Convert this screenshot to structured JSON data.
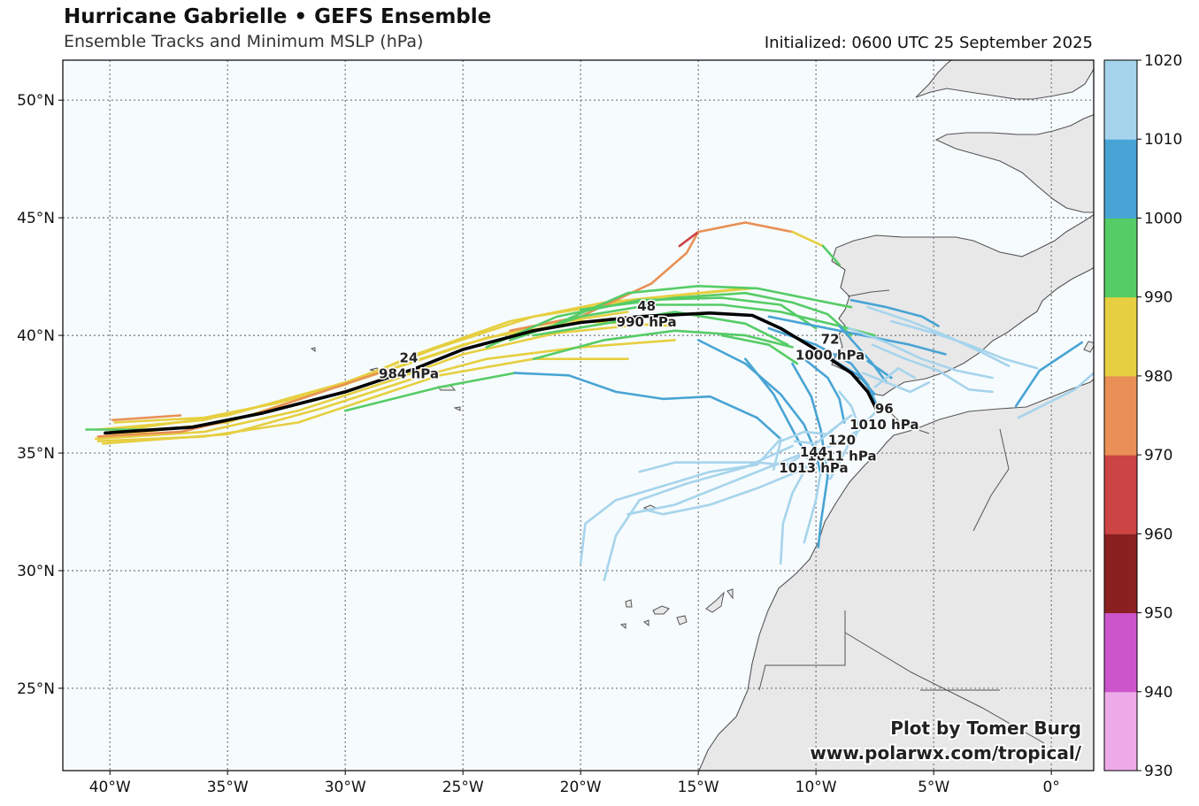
{
  "header": {
    "title": "Hurricane Gabrielle • GEFS Ensemble",
    "subtitle": "Ensemble Tracks and Minimum MSLP (hPa)",
    "initialized": "Initialized: 0600 UTC 25 September 2025"
  },
  "map": {
    "lon_range": [
      -42,
      1.8
    ],
    "lat_range": [
      21.5,
      51.7
    ],
    "lon_ticks": [
      -40,
      -35,
      -30,
      -25,
      -20,
      -15,
      -10,
      -5,
      0
    ],
    "lon_tick_labels": [
      "40°W",
      "35°W",
      "30°W",
      "25°W",
      "20°W",
      "15°W",
      "10°W",
      "5°W",
      "0°"
    ],
    "lat_ticks": [
      25,
      30,
      35,
      40,
      45,
      50
    ],
    "lat_tick_labels": [
      "25°N",
      "30°N",
      "35°N",
      "40°N",
      "45°N",
      "50°N"
    ],
    "grid": true,
    "ocean_color": "#f6fbfd",
    "land_color": "#e8e8e8"
  },
  "colorbar": {
    "levels": [
      930,
      940,
      950,
      960,
      970,
      980,
      990,
      1000,
      1010,
      1020
    ],
    "level_labels": [
      "930",
      "940",
      "950",
      "960",
      "970",
      "980",
      "990",
      "1000",
      "1010",
      "1020"
    ],
    "colors": [
      "#eeaae8",
      "#cc55cc",
      "#8b2020",
      "#cc4444",
      "#e89055",
      "#e6cf40",
      "#55cc66",
      "#48a4d4",
      "#a6d4ec"
    ]
  },
  "mean_track": {
    "color": "#000000",
    "points": [
      [
        -40.2,
        35.85
      ],
      [
        -36.5,
        36.1
      ],
      [
        -33.5,
        36.7
      ],
      [
        -30,
        37.6
      ],
      [
        -27,
        38.6
      ],
      [
        -25,
        39.4
      ],
      [
        -22,
        40.2
      ],
      [
        -20,
        40.55
      ],
      [
        -17.5,
        40.8
      ],
      [
        -14.5,
        40.95
      ],
      [
        -12.7,
        40.85
      ],
      [
        -11.5,
        40.3
      ],
      [
        -10,
        39.4
      ],
      [
        -8.5,
        38.4
      ],
      [
        -7.8,
        37.6
      ],
      [
        -7.4,
        36.8
      ]
    ],
    "labels": [
      {
        "hour": "24",
        "pressure": "984 hPa",
        "lon": -27.3,
        "lat": 38.7
      },
      {
        "hour": "48",
        "pressure": "990 hPa",
        "lon": -17.2,
        "lat": 40.9
      },
      {
        "hour": "72",
        "pressure": "1000 hPa",
        "lon": -9.4,
        "lat": 39.5
      },
      {
        "hour": "96",
        "pressure": "1010 hPa",
        "lon": -7.1,
        "lat": 36.55
      },
      {
        "hour": "120",
        "pressure": "1011 hPa",
        "lon": -8.9,
        "lat": 35.2
      },
      {
        "hour": "144",
        "pressure": "1013 hPa",
        "lon": -10.1,
        "lat": 34.7
      }
    ]
  },
  "ensemble_tracks": [
    {
      "pressure": 985,
      "points": [
        [
          -40.6,
          35.6
        ],
        [
          -36,
          35.9
        ],
        [
          -32,
          36.8
        ],
        [
          -28,
          38.1
        ],
        [
          -25,
          39.2
        ],
        [
          -21,
          40.1
        ],
        [
          -18,
          40.4
        ]
      ]
    },
    {
      "pressure": 985,
      "points": [
        [
          -40.5,
          36.0
        ],
        [
          -36,
          36.4
        ],
        [
          -32,
          37.4
        ],
        [
          -28,
          38.6
        ],
        [
          -25,
          39.6
        ],
        [
          -22,
          40.4
        ],
        [
          -18,
          41.0
        ]
      ]
    },
    {
      "pressure": 985,
      "points": [
        [
          -40.3,
          35.4
        ],
        [
          -35,
          35.8
        ],
        [
          -31,
          36.9
        ],
        [
          -27,
          38.2
        ],
        [
          -24,
          39.0
        ],
        [
          -20,
          39.5
        ],
        [
          -16,
          39.8
        ]
      ]
    },
    {
      "pressure": 985,
      "points": [
        [
          -40.4,
          35.7
        ],
        [
          -35,
          36.3
        ],
        [
          -31,
          37.6
        ],
        [
          -27,
          38.9
        ],
        [
          -24,
          39.9
        ],
        [
          -20,
          40.6
        ],
        [
          -16,
          40.4
        ]
      ]
    },
    {
      "pressure": 985,
      "points": [
        [
          -39.8,
          36.3
        ],
        [
          -36,
          36.5
        ],
        [
          -33,
          37.1
        ],
        [
          -30,
          37.9
        ],
        [
          -27,
          39.2
        ],
        [
          -23,
          40.6
        ],
        [
          -19,
          41.4
        ],
        [
          -15,
          41.8
        ],
        [
          -13,
          42.0
        ]
      ]
    },
    {
      "pressure": 985,
      "points": [
        [
          -40.0,
          35.9
        ],
        [
          -35,
          36.6
        ],
        [
          -30,
          38.0
        ],
        [
          -26,
          39.5
        ],
        [
          -22,
          40.8
        ],
        [
          -17,
          41.6
        ],
        [
          -12.7,
          42.0
        ]
      ]
    },
    {
      "pressure": 985,
      "points": [
        [
          -40.5,
          35.5
        ],
        [
          -36,
          35.7
        ],
        [
          -32,
          36.3
        ],
        [
          -29,
          37.3
        ],
        [
          -26,
          38.3
        ],
        [
          -22,
          39.0
        ],
        [
          -18,
          39.0
        ]
      ]
    },
    {
      "pressure": 975,
      "points": [
        [
          -40.5,
          35.7
        ],
        [
          -37,
          35.9
        ],
        [
          -34,
          36.6
        ],
        [
          -31,
          37.6
        ],
        [
          -28,
          38.6
        ]
      ]
    },
    {
      "pressure": 975,
      "points": [
        [
          -39.9,
          36.4
        ],
        [
          -37,
          36.6
        ]
      ]
    },
    {
      "pressure": 975,
      "points": [
        [
          -23,
          40.2
        ],
        [
          -20,
          40.8
        ],
        [
          -17,
          42.2
        ],
        [
          -15.5,
          43.5
        ],
        [
          -15,
          44.4
        ]
      ]
    },
    {
      "pressure": 965,
      "points": [
        [
          -15.8,
          43.8
        ],
        [
          -15,
          44.4
        ]
      ]
    },
    {
      "pressure": 975,
      "points": [
        [
          -15,
          44.4
        ],
        [
          -13,
          44.8
        ],
        [
          -11,
          44.4
        ]
      ]
    },
    {
      "pressure": 985,
      "points": [
        [
          -11,
          44.4
        ],
        [
          -9.7,
          43.8
        ]
      ]
    },
    {
      "pressure": 995,
      "points": [
        [
          -9.7,
          43.8
        ],
        [
          -9.0,
          43.0
        ]
      ]
    },
    {
      "pressure": 995,
      "points": [
        [
          -41.0,
          36.0
        ],
        [
          -38,
          36.0
        ]
      ]
    },
    {
      "pressure": 995,
      "points": [
        [
          -30,
          36.8
        ],
        [
          -26,
          37.8
        ],
        [
          -22.8,
          38.4
        ]
      ]
    },
    {
      "pressure": 995,
      "points": [
        [
          -22,
          39.0
        ],
        [
          -19,
          39.8
        ],
        [
          -16,
          40.2
        ],
        [
          -13,
          40.0
        ],
        [
          -11,
          39.5
        ]
      ]
    },
    {
      "pressure": 995,
      "points": [
        [
          -23,
          39.8
        ],
        [
          -20,
          40.8
        ],
        [
          -17,
          41.3
        ],
        [
          -14,
          41.3
        ],
        [
          -11.5,
          41.0
        ],
        [
          -9,
          40.4
        ],
        [
          -7.5,
          40.0
        ]
      ]
    },
    {
      "pressure": 995,
      "points": [
        [
          -21,
          40.5
        ],
        [
          -18,
          41.8
        ],
        [
          -15,
          42.1
        ],
        [
          -12.5,
          42.0
        ],
        [
          -10.5,
          41.6
        ],
        [
          -8.5,
          41.2
        ]
      ]
    },
    {
      "pressure": 995,
      "points": [
        [
          -24,
          39.5
        ],
        [
          -21,
          40.8
        ],
        [
          -17.5,
          41.5
        ],
        [
          -14,
          41.6
        ],
        [
          -11.5,
          41.3
        ],
        [
          -10,
          40.3
        ]
      ]
    },
    {
      "pressure": 995,
      "points": [
        [
          -22,
          40.0
        ],
        [
          -19,
          40.5
        ],
        [
          -16,
          41.0
        ],
        [
          -13,
          40.5
        ],
        [
          -11.2,
          39.6
        ]
      ]
    },
    {
      "pressure": 995,
      "points": [
        [
          -20,
          41.1
        ],
        [
          -16,
          41.6
        ],
        [
          -13,
          41.8
        ],
        [
          -11,
          41.4
        ],
        [
          -9.5,
          40.9
        ],
        [
          -8.5,
          40.0
        ]
      ]
    },
    {
      "pressure": 995,
      "points": [
        [
          -14,
          40.0
        ],
        [
          -12,
          39.6
        ],
        [
          -10.8,
          38.8
        ]
      ]
    },
    {
      "pressure": 1005,
      "points": [
        [
          -22.8,
          38.4
        ],
        [
          -20.5,
          38.3
        ],
        [
          -18.5,
          37.6
        ],
        [
          -16.5,
          37.3
        ],
        [
          -14.5,
          37.4
        ],
        [
          -12.5,
          36.5
        ],
        [
          -11.5,
          35.6
        ]
      ]
    },
    {
      "pressure": 1005,
      "points": [
        [
          -15,
          39.8
        ],
        [
          -13,
          38.8
        ],
        [
          -11.5,
          37.5
        ],
        [
          -10.5,
          36.2
        ],
        [
          -10,
          35.0
        ],
        [
          -9.8,
          34.1
        ]
      ]
    },
    {
      "pressure": 1005,
      "points": [
        [
          -12,
          40.3
        ],
        [
          -10,
          39.6
        ],
        [
          -8.5,
          38.8
        ],
        [
          -7.8,
          37.9
        ],
        [
          -7.4,
          37.0
        ]
      ]
    },
    {
      "pressure": 1005,
      "points": [
        [
          -11,
          40.0
        ],
        [
          -9.5,
          39.1
        ],
        [
          -8.2,
          38.3
        ],
        [
          -7.5,
          37.5
        ]
      ]
    },
    {
      "pressure": 1005,
      "points": [
        [
          -9,
          40.4
        ],
        [
          -8.3,
          39.6
        ],
        [
          -7.6,
          38.8
        ],
        [
          -7.0,
          38.0
        ]
      ]
    },
    {
      "pressure": 1005,
      "points": [
        [
          -10.5,
          39.0
        ],
        [
          -9.5,
          38.2
        ],
        [
          -9.0,
          37.3
        ],
        [
          -8.8,
          36.3
        ]
      ]
    },
    {
      "pressure": 1005,
      "points": [
        [
          -11,
          38.8
        ],
        [
          -10.2,
          37.4
        ],
        [
          -9.8,
          36.0
        ],
        [
          -9.5,
          34.0
        ],
        [
          -9.8,
          32.0
        ],
        [
          -9.9,
          31.0
        ]
      ]
    },
    {
      "pressure": 1005,
      "points": [
        [
          -13,
          39.0
        ],
        [
          -11.8,
          37.5
        ],
        [
          -11.0,
          36.0
        ],
        [
          -10.3,
          34.7
        ]
      ]
    },
    {
      "pressure": 1005,
      "points": [
        [
          -12,
          40.8
        ],
        [
          -10.5,
          40.5
        ],
        [
          -8.0,
          40.0
        ],
        [
          -6.0,
          39.6
        ],
        [
          -4.5,
          39.2
        ]
      ]
    },
    {
      "pressure": 1005,
      "points": [
        [
          -8.5,
          41.5
        ],
        [
          -7.0,
          41.2
        ],
        [
          -5.5,
          40.8
        ],
        [
          -4.8,
          40.4
        ]
      ]
    },
    {
      "pressure": 1005,
      "points": [
        [
          -7.8,
          38.9
        ],
        [
          -6.8,
          38.2
        ]
      ]
    },
    {
      "pressure": 1005,
      "points": [
        [
          -1.5,
          37.0
        ],
        [
          -0.5,
          38.5
        ],
        [
          1.3,
          39.7
        ]
      ]
    },
    {
      "pressure": 1015,
      "points": [
        [
          -11.5,
          35.6
        ],
        [
          -12.5,
          34.5
        ],
        [
          -14.5,
          34.2
        ],
        [
          -16.5,
          33.6
        ],
        [
          -18.5,
          33.0
        ],
        [
          -19.8,
          32.0
        ],
        [
          -20.0,
          30.3
        ]
      ]
    },
    {
      "pressure": 1015,
      "points": [
        [
          -11,
          35.3
        ],
        [
          -13,
          34.4
        ],
        [
          -15.5,
          33.7
        ],
        [
          -17.5,
          33.0
        ],
        [
          -18.5,
          31.5
        ],
        [
          -19.0,
          29.6
        ]
      ]
    },
    {
      "pressure": 1015,
      "points": [
        [
          -10.5,
          35.0
        ],
        [
          -12.0,
          34.4
        ],
        [
          -14.0,
          33.6
        ],
        [
          -16.0,
          32.8
        ],
        [
          -18.0,
          32.4
        ]
      ]
    },
    {
      "pressure": 1015,
      "points": [
        [
          -10.8,
          34.2
        ],
        [
          -12.5,
          33.5
        ],
        [
          -14.5,
          32.8
        ],
        [
          -16.5,
          32.4
        ],
        [
          -17.3,
          32.6
        ]
      ]
    },
    {
      "pressure": 1015,
      "points": [
        [
          -10.3,
          34.6
        ],
        [
          -11.0,
          33.3
        ],
        [
          -11.4,
          32.0
        ],
        [
          -11.5,
          30.3
        ]
      ]
    },
    {
      "pressure": 1015,
      "points": [
        [
          -9.8,
          34.2
        ],
        [
          -10.0,
          33.0
        ],
        [
          -10.5,
          31.2
        ]
      ]
    },
    {
      "pressure": 1015,
      "points": [
        [
          -10.5,
          34.4
        ],
        [
          -12.5,
          34.6
        ],
        [
          -16.0,
          34.6
        ],
        [
          -17.5,
          34.2
        ]
      ]
    },
    {
      "pressure": 1015,
      "points": [
        [
          -8.8,
          36.4
        ],
        [
          -9.5,
          35.8
        ],
        [
          -10.5,
          35.9
        ],
        [
          -11.5,
          35.5
        ],
        [
          -11.8,
          34.3
        ]
      ]
    },
    {
      "pressure": 1015,
      "points": [
        [
          -7.4,
          36.8
        ],
        [
          -8.3,
          35.9
        ],
        [
          -9.4,
          35.3
        ],
        [
          -10.6,
          34.9
        ],
        [
          -11.4,
          34.4
        ]
      ]
    },
    {
      "pressure": 1015,
      "points": [
        [
          -8.5,
          36.6
        ],
        [
          -9.3,
          36.0
        ],
        [
          -10.0,
          35.4
        ],
        [
          -10.9,
          35.5
        ]
      ]
    },
    {
      "pressure": 1015,
      "points": [
        [
          -8.0,
          36.2
        ],
        [
          -8.6,
          35.4
        ],
        [
          -9.0,
          34.6
        ],
        [
          -9.4,
          33.9
        ]
      ]
    },
    {
      "pressure": 1015,
      "points": [
        [
          -9.0,
          37.6
        ],
        [
          -8.5,
          37.0
        ],
        [
          -8.2,
          36.2
        ],
        [
          -8.4,
          35.4
        ]
      ]
    },
    {
      "pressure": 1015,
      "points": [
        [
          -8.6,
          40.3
        ],
        [
          -7.0,
          39.7
        ],
        [
          -5.5,
          39.0
        ],
        [
          -4.0,
          38.5
        ],
        [
          -2.5,
          38.2
        ]
      ]
    },
    {
      "pressure": 1015,
      "points": [
        [
          -7.6,
          39.6
        ],
        [
          -6.2,
          39.0
        ],
        [
          -4.8,
          38.5
        ],
        [
          -3.5,
          37.7
        ],
        [
          -2.5,
          37.6
        ]
      ]
    },
    {
      "pressure": 1015,
      "points": [
        [
          -6.8,
          40.6
        ],
        [
          -5.0,
          40.1
        ],
        [
          -3.5,
          39.6
        ],
        [
          -2.0,
          39.0
        ],
        [
          -0.6,
          38.6
        ]
      ]
    },
    {
      "pressure": 1015,
      "points": [
        [
          -7.8,
          41.2
        ],
        [
          -6.0,
          40.6
        ],
        [
          -4.5,
          40.0
        ],
        [
          -3.0,
          39.3
        ],
        [
          -1.8,
          38.7
        ]
      ]
    },
    {
      "pressure": 1015,
      "points": [
        [
          -8.0,
          38.4
        ],
        [
          -7.0,
          38.0
        ],
        [
          -6.0,
          37.6
        ],
        [
          -5.2,
          38.0
        ]
      ]
    },
    {
      "pressure": 1015,
      "points": [
        [
          -7.5,
          37.8
        ],
        [
          -6.5,
          38.6
        ],
        [
          -5.8,
          38.2
        ]
      ]
    },
    {
      "pressure": 1015,
      "points": [
        [
          -1.4,
          36.5
        ],
        [
          0.0,
          37.2
        ],
        [
          1.0,
          37.7
        ],
        [
          1.8,
          38.4
        ]
      ]
    }
  ],
  "credit": {
    "line1": "Plot by Tomer Burg",
    "line2": "www.polarwx.com/tropical/"
  }
}
